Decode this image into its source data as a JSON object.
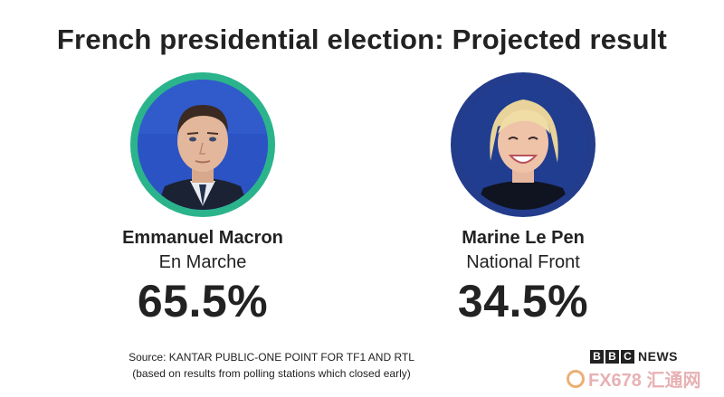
{
  "title": "French presidential election: Projected result",
  "candidates": [
    {
      "name": "Emmanuel Macron",
      "party": "En Marche",
      "percent": "65.5%",
      "ring_color": "#2bb48b"
    },
    {
      "name": "Marine Le Pen",
      "party": "National Front",
      "percent": "34.5%",
      "ring_color": "#233c8c"
    }
  ],
  "source_line1": "Source: KANTAR PUBLIC-ONE POINT FOR TF1 AND RTL",
  "source_line2": "(based on results from polling stations which closed early)",
  "brand": {
    "b1": "B",
    "b2": "B",
    "b3": "C",
    "news": "NEWS"
  },
  "watermark": "FX678 汇通网",
  "colors": {
    "macron_ring": "#2bb48b",
    "lepen_ring": "#233c8c",
    "text": "#222222"
  }
}
